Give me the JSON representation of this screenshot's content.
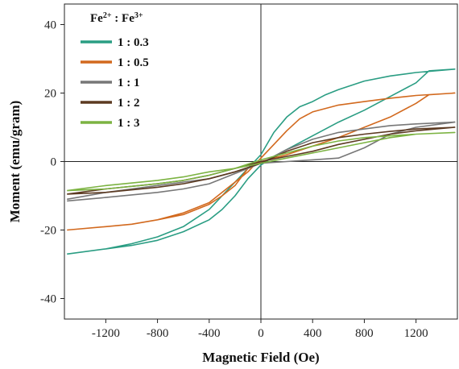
{
  "chart_data": {
    "type": "line",
    "xlabel": "Magnetic Field (Oe)",
    "ylabel": "Moment (emu/gram)",
    "xlim": [
      -1520,
      1520
    ],
    "ylim": [
      -46,
      46
    ],
    "xticks": [
      -1200,
      -800,
      -400,
      0,
      400,
      800,
      1200
    ],
    "yticks": [
      -40,
      -20,
      0,
      20,
      40
    ],
    "xtick_labels": [
      "-1200",
      "-800",
      "-400",
      "0",
      "400",
      "800",
      "1200"
    ],
    "ytick_labels": [
      "-40",
      "-20",
      "0",
      "20",
      "40"
    ],
    "zero_lines": true,
    "legend": {
      "title_base": "Fe",
      "title_sup1": "2+",
      "title_sep": " : Fe",
      "title_sup2": "3+",
      "position": "top-left"
    },
    "series": [
      {
        "name": "1 : 0.3",
        "color": "#2a9d83",
        "x": [
          -1500,
          -1200,
          -1000,
          -800,
          -600,
          -400,
          -300,
          -200,
          -100,
          0,
          100,
          200,
          300,
          400,
          500,
          600,
          800,
          1000,
          1200,
          1500,
          1500,
          1300,
          1200,
          1000,
          800,
          600,
          400,
          300,
          200,
          100,
          0,
          -100,
          -200,
          -300,
          -400,
          -600,
          -800,
          -1000,
          -1200,
          -1500
        ],
        "y": [
          -27,
          -25.5,
          -24,
          -22,
          -19,
          -14,
          -10,
          -6,
          -2,
          2,
          8.5,
          13,
          16,
          17.5,
          19.5,
          21,
          23.5,
          25,
          26,
          27,
          27,
          26.5,
          23,
          19,
          15,
          11.5,
          7.5,
          5.5,
          3.5,
          1.5,
          -1,
          -5,
          -10,
          -14,
          -17,
          -20.5,
          -23,
          -24.5,
          -25.5,
          -27
        ]
      },
      {
        "name": "1 : 0.5",
        "color": "#d2691e",
        "x": [
          -1500,
          -1200,
          -1000,
          -800,
          -600,
          -400,
          -300,
          -200,
          -100,
          0,
          100,
          200,
          300,
          400,
          600,
          800,
          1000,
          1200,
          1500,
          1500,
          1300,
          1200,
          1000,
          800,
          600,
          400,
          200,
          100,
          0,
          -100,
          -200,
          -300,
          -400,
          -600,
          -800,
          -1000,
          -1200,
          -1500
        ],
        "y": [
          -20,
          -19,
          -18.3,
          -17,
          -15,
          -12,
          -9,
          -6,
          -3,
          1,
          5,
          9,
          12.5,
          14.5,
          16.5,
          17.5,
          18.5,
          19.3,
          20,
          20,
          19.5,
          17,
          13,
          10,
          7,
          4.5,
          2,
          1,
          0,
          -2,
          -7,
          -10,
          -12.5,
          -15.5,
          -17,
          -18.3,
          -19,
          -20
        ]
      },
      {
        "name": "1 : 1",
        "color": "#777777",
        "x": [
          -1500,
          -1200,
          -800,
          -600,
          -400,
          -200,
          0,
          200,
          400,
          600,
          800,
          1000,
          1200,
          1500,
          1500,
          1200,
          1000,
          800,
          600,
          400,
          200,
          0,
          -200,
          -400,
          -600,
          -800,
          -1200,
          -1500
        ],
        "y": [
          -11.5,
          -10.5,
          -9,
          -8,
          -6.5,
          -3.5,
          -0.5,
          3.5,
          6.5,
          8.5,
          9.5,
          10.5,
          11,
          11.5,
          11.5,
          10,
          8,
          4,
          1,
          0.5,
          0,
          -0.5,
          -3,
          -5,
          -6,
          -7,
          -9,
          -11
        ]
      },
      {
        "name": "1 : 2",
        "color": "#5c3a21",
        "x": [
          -1500,
          -1200,
          -800,
          -600,
          -400,
          -200,
          0,
          200,
          400,
          600,
          800,
          1000,
          1200,
          1500,
          1500,
          1200,
          1000,
          800,
          600,
          400,
          200,
          0,
          -200,
          -400,
          -600,
          -800,
          -1200,
          -1500
        ],
        "y": [
          -9.5,
          -9,
          -7.5,
          -6.5,
          -5,
          -3,
          -0.5,
          3,
          5.5,
          7,
          8,
          8.8,
          9.5,
          10,
          10,
          9,
          8,
          6.5,
          5,
          3,
          1.5,
          0,
          -2,
          -4,
          -5.5,
          -6.5,
          -8,
          -9.5
        ]
      },
      {
        "name": "1 : 3",
        "color": "#7cb342",
        "x": [
          -1500,
          -1200,
          -800,
          -600,
          -400,
          -200,
          0,
          200,
          400,
          600,
          800,
          1000,
          1200,
          1500,
          1500,
          1200,
          1000,
          800,
          600,
          400,
          200,
          0,
          -200,
          -400,
          -600,
          -800,
          -1200,
          -1500
        ],
        "y": [
          -8.5,
          -8,
          -6.5,
          -5.5,
          -4,
          -2,
          0.5,
          2.5,
          4.5,
          6,
          7,
          7.5,
          8,
          8.5,
          8.5,
          8,
          7,
          5.5,
          4,
          2.5,
          1,
          -0.5,
          -2,
          -3,
          -4.5,
          -5.5,
          -7,
          -8.5
        ]
      }
    ]
  }
}
